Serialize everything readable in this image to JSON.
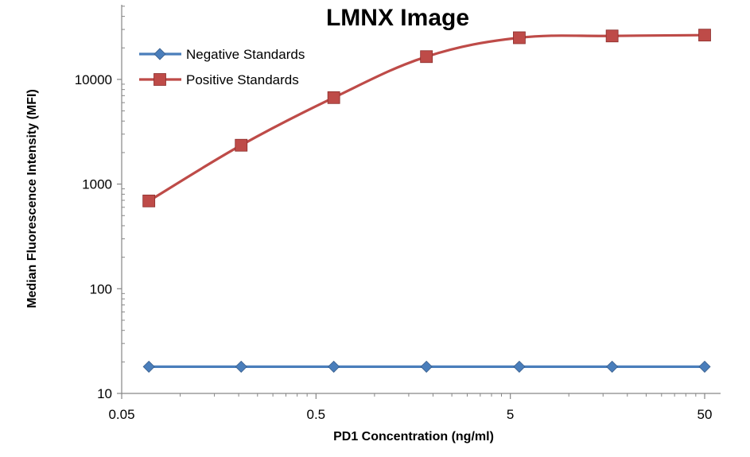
{
  "chart_data": {
    "type": "line",
    "title": "LMNX Image",
    "xlabel": "PD1 Concentration  (ng/ml)",
    "ylabel": "Median Fluorescence Intensity (MFI)",
    "x_scale": "log",
    "y_scale": "log",
    "xlim": [
      0.05,
      50
    ],
    "ylim": [
      10,
      30000
    ],
    "x_ticks": [
      0.05,
      0.5,
      5,
      50
    ],
    "x_tick_labels": [
      "0.05",
      "0.5",
      "5",
      "50"
    ],
    "y_ticks": [
      10,
      100,
      1000,
      10000
    ],
    "y_tick_labels": [
      "10",
      "100",
      "1000",
      "10000"
    ],
    "grid": false,
    "legend_position": "top-left",
    "series": [
      {
        "name": "Negative Standards",
        "color": "#4a7ebb",
        "marker": "diamond",
        "smooth": false,
        "x": [
          0.069,
          0.206,
          0.617,
          1.85,
          5.56,
          16.7,
          50
        ],
        "values": [
          18,
          18,
          18,
          18,
          18,
          18,
          18
        ]
      },
      {
        "name": "Positive Standards",
        "color": "#be4b48",
        "marker": "square",
        "smooth": true,
        "x": [
          0.069,
          0.206,
          0.617,
          1.85,
          5.56,
          16.7,
          50
        ],
        "values": [
          690,
          2350,
          6700,
          16500,
          25000,
          26000,
          26500
        ]
      }
    ]
  }
}
